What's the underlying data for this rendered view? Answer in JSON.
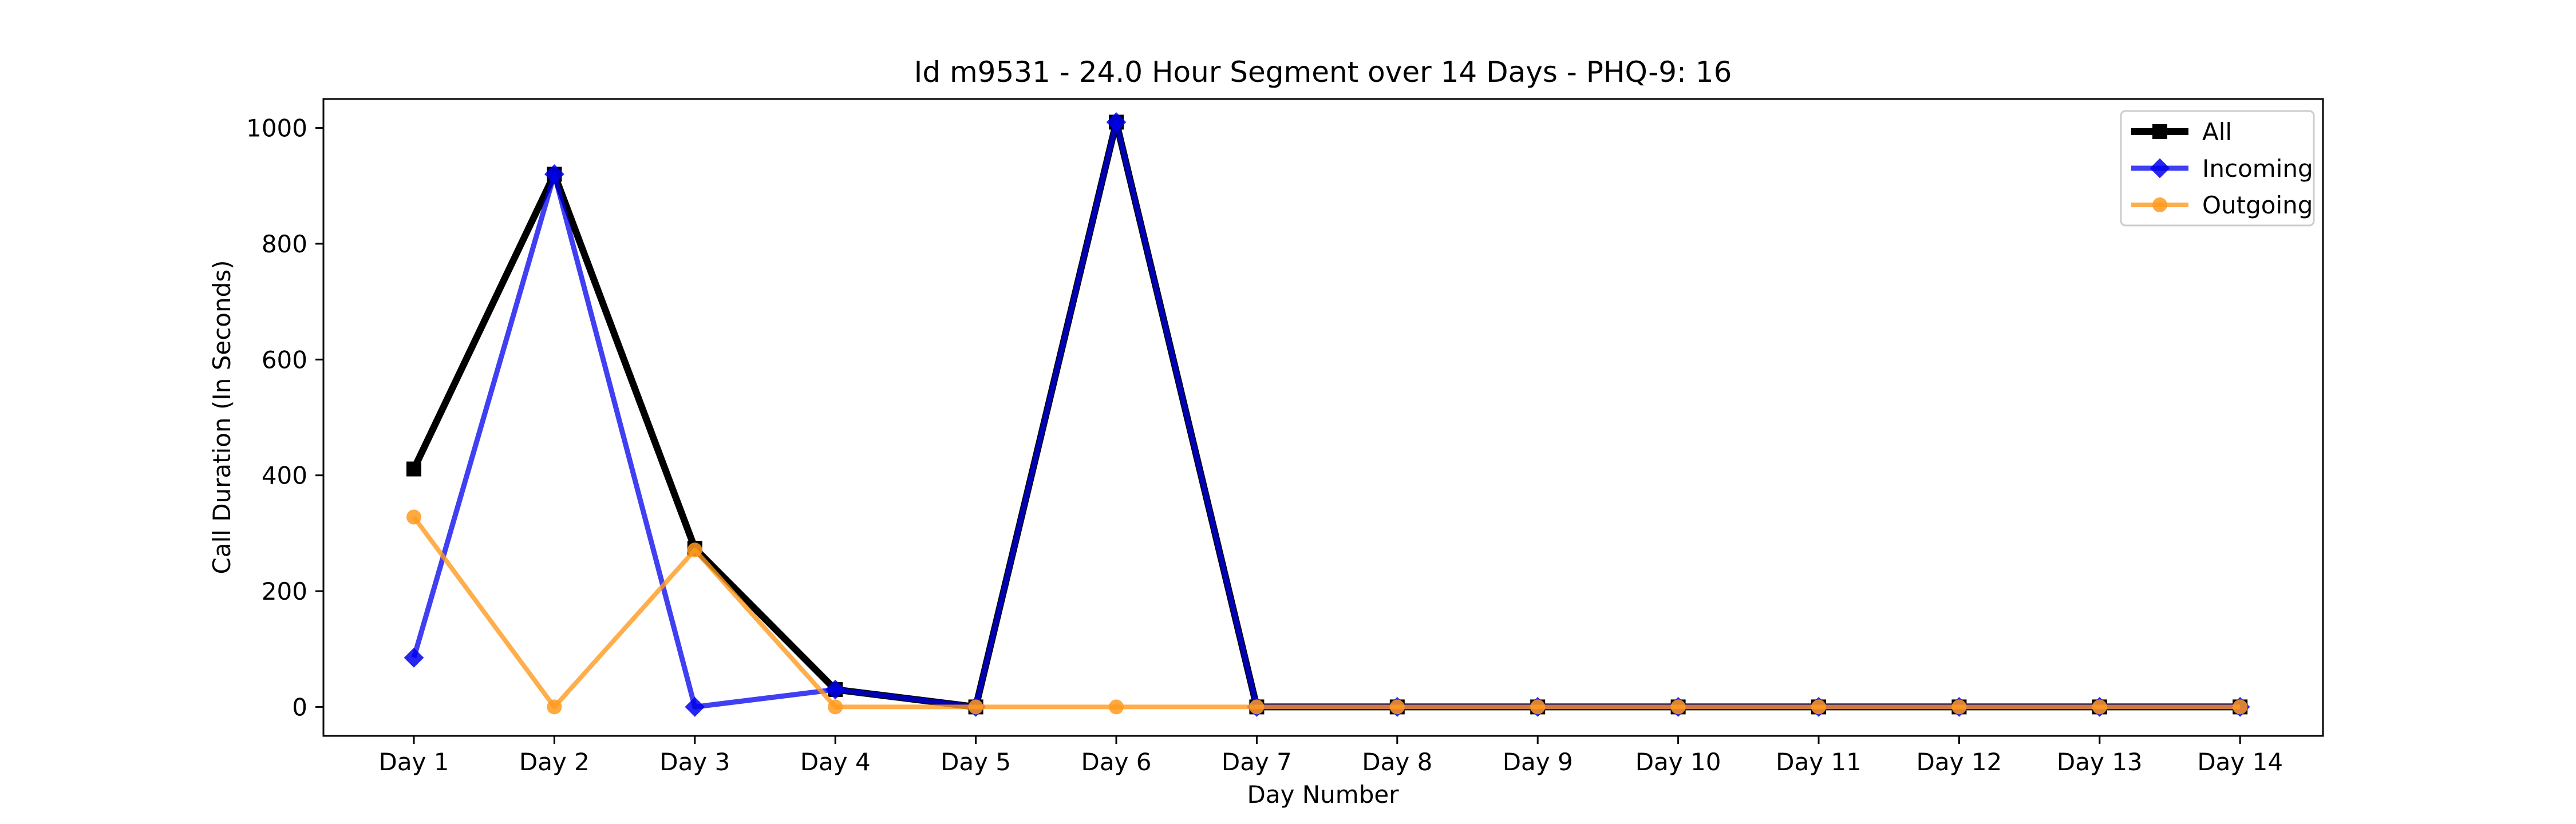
{
  "chart_data": {
    "type": "line",
    "title": "Id m9531 - 24.0 Hour Segment over 14 Days - PHQ-9: 16",
    "xlabel": "Day Number",
    "ylabel": "Call Duration (In Seconds)",
    "categories": [
      "Day 1",
      "Day 2",
      "Day 3",
      "Day 4",
      "Day 5",
      "Day 6",
      "Day 7",
      "Day 8",
      "Day 9",
      "Day 10",
      "Day 11",
      "Day 12",
      "Day 13",
      "Day 14"
    ],
    "ylim": [
      -50,
      1050
    ],
    "yticks": [
      0,
      200,
      400,
      600,
      800,
      1000
    ],
    "grid": false,
    "legend_position": "top-right",
    "series": [
      {
        "name": "All",
        "color": "#000000",
        "marker": "square",
        "values": [
          411,
          920,
          274,
          30,
          0,
          1010,
          0,
          0,
          0,
          0,
          0,
          0,
          0,
          0
        ]
      },
      {
        "name": "Incoming",
        "color": "#0000ee",
        "marker": "diamond",
        "values": [
          85,
          920,
          0,
          30,
          0,
          1010,
          0,
          0,
          0,
          0,
          0,
          0,
          0,
          0
        ]
      },
      {
        "name": "Outgoing",
        "color": "#ff9a1f",
        "marker": "circle",
        "values": [
          328,
          0,
          271,
          0,
          0,
          0,
          0,
          0,
          0,
          0,
          0,
          0,
          0,
          0
        ]
      }
    ]
  }
}
